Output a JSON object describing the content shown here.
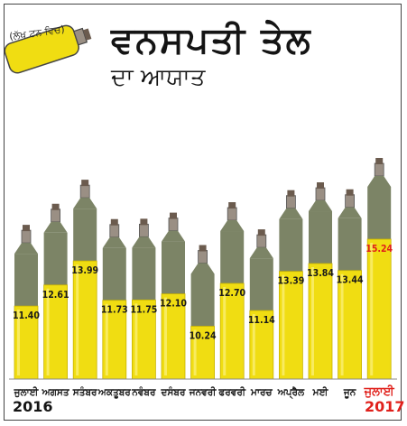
{
  "title": "ਵਨਸਪਤੀ ਤੇਲ",
  "subtitle": "ਦਾ ਆਯਾਤ",
  "unit": "(ਲੱਖ ਟਨ ਵਿਚ)",
  "colors": {
    "oil": "#f0dd12",
    "oil_edge": "#c9b400",
    "empty": "#7c8466",
    "cap": "#9a8f84",
    "label": "#ffffff",
    "highlight": "#e0201b"
  },
  "chart_data": {
    "type": "bar",
    "title": "ਵਨਸਪਤੀ ਤੇਲ ਦਾ ਆਯਾਤ",
    "unit": "(ਲੱਖ ਟਨ ਵਿਚ)",
    "categories": [
      "ਜੁਲਾਈ",
      "ਅਗਸਤ",
      "ਸਤੰਬਰ",
      "ਅਕਤੂਬਰ",
      "ਨਵੰਬਰ",
      "ਦਸੰਬਰ",
      "ਜਨਵਰੀ",
      "ਫਰਵਰੀ",
      "ਮਾਰਚ",
      "ਅਪ੍ਰੈਲ",
      "ਮਈ",
      "ਜੂਨ",
      "ਜੁਲਾਈ"
    ],
    "values": [
      11.4,
      12.61,
      13.99,
      11.73,
      11.75,
      12.1,
      10.24,
      12.7,
      11.14,
      13.39,
      13.84,
      13.44,
      15.24
    ],
    "value_labels": [
      "11.40",
      "12.61",
      "13.99",
      "11.73",
      "11.75",
      "12.10",
      "10.24",
      "12.70",
      "11.14",
      "13.39",
      "13.84",
      "13.44",
      "15.24"
    ],
    "highlight_index": 12,
    "year_start": "2016",
    "year_end": "2017"
  }
}
